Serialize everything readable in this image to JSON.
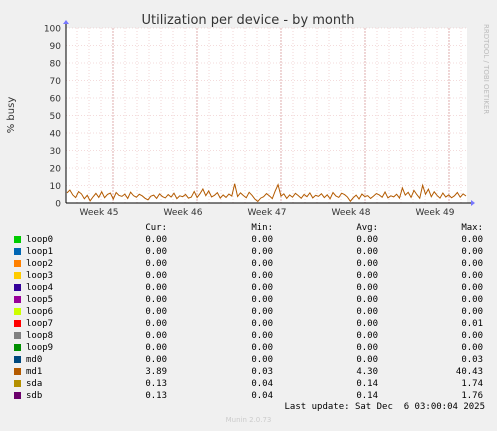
{
  "colors": {
    "background": "#f0f0f0",
    "plot_background": "#ffffff",
    "grid_minor": "#e8b8b8",
    "grid_major": "#cccccc",
    "axis": "#000000",
    "watermark": "#bbbbbb"
  },
  "side_label": "RRDTOOL / TOBI OETIKER",
  "chart_data": {
    "type": "line",
    "title": "Utilization per device - by month",
    "ylabel": "% busy",
    "xlabel": "",
    "ylim": [
      0,
      100
    ],
    "yticks": [
      0,
      10,
      20,
      30,
      40,
      50,
      60,
      70,
      80,
      90,
      100
    ],
    "xticks": [
      "Week 45",
      "Week 46",
      "Week 47",
      "Week 48",
      "Week 49"
    ],
    "grid": true,
    "series": [
      {
        "name": "md1",
        "color": "#b35a00",
        "values": [
          5.8,
          7.4,
          4.6,
          3.1,
          6.5,
          5.2,
          2.4,
          4.4,
          1.2,
          3.5,
          5.5,
          3.2,
          6.4,
          3.0,
          4.9,
          5.7,
          2.2,
          6.0,
          4.3,
          3.8,
          5.1,
          2.6,
          6.2,
          4.2,
          3.3,
          5.0,
          4.1,
          2.7,
          1.8,
          3.9,
          4.5,
          2.6,
          5.2,
          3.7,
          2.9,
          4.8,
          3.4,
          5.6,
          2.5,
          4.1,
          3.6,
          4.9,
          2.8,
          3.4,
          6.6,
          3.1,
          5.3,
          8.0,
          4.2,
          6.9,
          3.5,
          4.4,
          5.9,
          2.8,
          4.6,
          3.2,
          5.1,
          4.0,
          11.0,
          3.7,
          5.8,
          4.3,
          3.0,
          6.1,
          4.4,
          2.2,
          0.9,
          2.8,
          3.6,
          5.4,
          4.1,
          2.5,
          6.8,
          10.5,
          3.9,
          5.2,
          2.6,
          4.6,
          3.3,
          5.5,
          4.2,
          2.7,
          4.9,
          3.6,
          5.8,
          2.9,
          4.4,
          3.8,
          5.3,
          3.1,
          4.7,
          2.4,
          6.0,
          4.0,
          3.2,
          5.6,
          4.8,
          3.4,
          1.0,
          3.0,
          4.5,
          2.3,
          5.1,
          3.7,
          4.2,
          2.6,
          3.9,
          5.4,
          4.6,
          3.3,
          6.3,
          2.9,
          4.1,
          3.5,
          5.0,
          2.8,
          8.6,
          4.5,
          6.1,
          3.2,
          7.2,
          4.8,
          2.7,
          10.1,
          5.0,
          7.9,
          3.6,
          6.4,
          4.3,
          2.8,
          5.7,
          3.4,
          4.6,
          3.0,
          4.1,
          6.0,
          3.3,
          5.2,
          4.0
        ]
      }
    ]
  },
  "legend": {
    "headers": {
      "cur": "Cur:",
      "min": "Min:",
      "avg": "Avg:",
      "max": "Max:"
    },
    "rows": [
      {
        "name": "loop0",
        "color": "#00cc00",
        "cur": "0.00",
        "min": "0.00",
        "avg": "0.00",
        "max": "0.00"
      },
      {
        "name": "loop1",
        "color": "#0066b3",
        "cur": "0.00",
        "min": "0.00",
        "avg": "0.00",
        "max": "0.00"
      },
      {
        "name": "loop2",
        "color": "#ff8000",
        "cur": "0.00",
        "min": "0.00",
        "avg": "0.00",
        "max": "0.00"
      },
      {
        "name": "loop3",
        "color": "#ffcc00",
        "cur": "0.00",
        "min": "0.00",
        "avg": "0.00",
        "max": "0.00"
      },
      {
        "name": "loop4",
        "color": "#330099",
        "cur": "0.00",
        "min": "0.00",
        "avg": "0.00",
        "max": "0.00"
      },
      {
        "name": "loop5",
        "color": "#990099",
        "cur": "0.00",
        "min": "0.00",
        "avg": "0.00",
        "max": "0.00"
      },
      {
        "name": "loop6",
        "color": "#ccff00",
        "cur": "0.00",
        "min": "0.00",
        "avg": "0.00",
        "max": "0.00"
      },
      {
        "name": "loop7",
        "color": "#ff0000",
        "cur": "0.00",
        "min": "0.00",
        "avg": "0.00",
        "max": "0.01"
      },
      {
        "name": "loop8",
        "color": "#808080",
        "cur": "0.00",
        "min": "0.00",
        "avg": "0.00",
        "max": "0.00"
      },
      {
        "name": "loop9",
        "color": "#008f00",
        "cur": "0.00",
        "min": "0.00",
        "avg": "0.00",
        "max": "0.00"
      },
      {
        "name": "md0",
        "color": "#00487d",
        "cur": "0.00",
        "min": "0.00",
        "avg": "0.00",
        "max": "0.03"
      },
      {
        "name": "md1",
        "color": "#b35a00",
        "cur": "3.89",
        "min": "0.03",
        "avg": "4.30",
        "max": "40.43"
      },
      {
        "name": "sda",
        "color": "#b38f00",
        "cur": "0.13",
        "min": "0.04",
        "avg": "0.14",
        "max": "1.74"
      },
      {
        "name": "sdb",
        "color": "#6b006b",
        "cur": "0.13",
        "min": "0.04",
        "avg": "0.14",
        "max": "1.76"
      }
    ]
  },
  "last_update": "Last update: Sat Dec  6 03:00:04 2025",
  "footer": "Munin 2.0.73"
}
